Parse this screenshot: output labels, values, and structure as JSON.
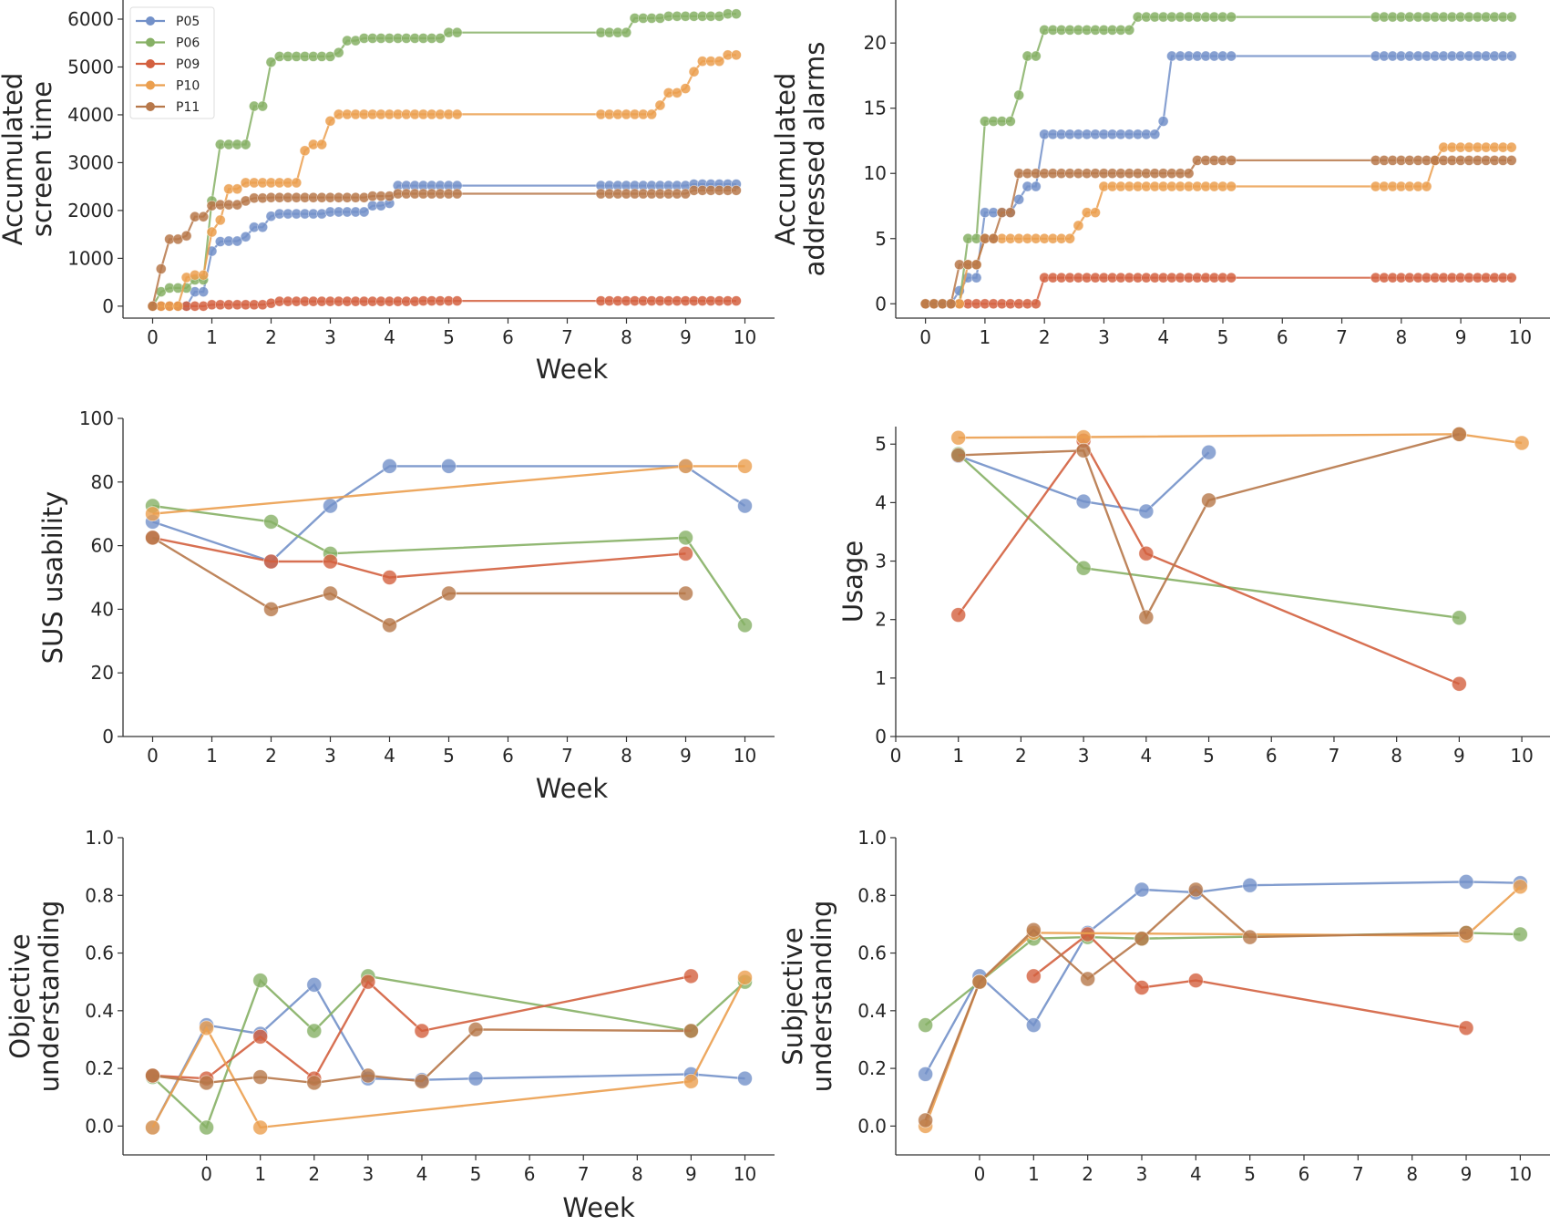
{
  "colors": {
    "P05": "#7391c9",
    "P06": "#86b065",
    "P09": "#d3603f",
    "P10": "#eb9f4f",
    "P11": "#b7784a"
  },
  "legend": {
    "position": "upper-left",
    "panel": "screen_time",
    "entries": [
      "P05",
      "P06",
      "P09",
      "P10",
      "P11"
    ]
  },
  "chart_data": [
    {
      "id": "screen_time",
      "type": "line",
      "title": "",
      "xlabel": "Week",
      "ylabel": [
        "Accumulated",
        "screen time"
      ],
      "xlim": [
        -0.5,
        10.5
      ],
      "ylim": [
        -250,
        6400
      ],
      "xticks": [
        0,
        1,
        2,
        3,
        4,
        5,
        6,
        7,
        8,
        9,
        10
      ],
      "yticks": [
        0,
        1000,
        2000,
        3000,
        4000,
        5000,
        6000
      ],
      "step": 0.1428,
      "gap": [
        5.2,
        7.55
      ],
      "series": [
        {
          "name": "P05",
          "plateaus": [
            [
              0,
              0
            ],
            [
              0.57,
              0
            ],
            [
              0.71,
              300
            ],
            [
              0.86,
              900
            ],
            [
              1.0,
              1150
            ],
            [
              1.14,
              1350
            ],
            [
              1.28,
              1360
            ],
            [
              1.43,
              1400
            ],
            [
              1.57,
              1450
            ],
            [
              1.71,
              1650
            ],
            [
              1.86,
              1720
            ],
            [
              2.0,
              1880
            ],
            [
              2.14,
              1930
            ],
            [
              2.86,
              1970
            ],
            [
              3.71,
              2100
            ],
            [
              3.86,
              2150
            ],
            [
              4.0,
              2280
            ],
            [
              4.14,
              2520
            ],
            [
              9.0,
              2520
            ],
            [
              9.14,
              2550
            ]
          ]
        },
        {
          "name": "P06",
          "plateaus": [
            [
              0,
              0
            ],
            [
              0.14,
              300
            ],
            [
              0.28,
              380
            ],
            [
              0.57,
              380
            ],
            [
              0.71,
              550
            ],
            [
              0.86,
              1500
            ],
            [
              1.0,
              2200
            ],
            [
              1.14,
              3380
            ],
            [
              1.57,
              3380
            ],
            [
              1.71,
              4180
            ],
            [
              1.86,
              4700
            ],
            [
              2.0,
              5100
            ],
            [
              2.14,
              5220
            ],
            [
              3.0,
              5300
            ],
            [
              3.28,
              5550
            ],
            [
              3.57,
              5600
            ],
            [
              4.86,
              5720
            ],
            [
              7.86,
              5720
            ],
            [
              8.0,
              6020
            ],
            [
              8.71,
              6060
            ],
            [
              9.71,
              6110
            ]
          ]
        },
        {
          "name": "P09",
          "plateaus": [
            [
              0,
              0
            ],
            [
              1.0,
              30
            ],
            [
              2.0,
              60
            ],
            [
              2.14,
              100
            ],
            [
              4.5,
              110
            ],
            [
              7.6,
              110
            ]
          ]
        },
        {
          "name": "P10",
          "plateaus": [
            [
              0,
              0
            ],
            [
              0.28,
              0
            ],
            [
              0.43,
              250
            ],
            [
              0.57,
              600
            ],
            [
              0.71,
              650
            ],
            [
              0.86,
              1350
            ],
            [
              1.0,
              1550
            ],
            [
              1.14,
              1800
            ],
            [
              1.28,
              2450
            ],
            [
              1.43,
              2580
            ],
            [
              2.28,
              2580
            ],
            [
              2.43,
              2850
            ],
            [
              2.57,
              3250
            ],
            [
              2.71,
              3380
            ],
            [
              2.86,
              3870
            ],
            [
              3.0,
              3970
            ],
            [
              3.14,
              4010
            ],
            [
              8.28,
              4010
            ],
            [
              8.43,
              4200
            ],
            [
              8.57,
              4380
            ],
            [
              8.71,
              4460
            ],
            [
              8.86,
              4550
            ],
            [
              9.0,
              4690
            ],
            [
              9.14,
              4900
            ],
            [
              9.28,
              5120
            ],
            [
              9.71,
              5250
            ]
          ]
        },
        {
          "name": "P11",
          "plateaus": [
            [
              0,
              0
            ],
            [
              0.14,
              780
            ],
            [
              0.28,
              1400
            ],
            [
              0.43,
              1470
            ],
            [
              0.71,
              1870
            ],
            [
              0.86,
              1930
            ],
            [
              1.0,
              2100
            ],
            [
              1.14,
              2120
            ],
            [
              1.43,
              2200
            ],
            [
              1.71,
              2260
            ],
            [
              2.0,
              2270
            ],
            [
              3.71,
              2300
            ],
            [
              4.14,
              2350
            ],
            [
              9.0,
              2420
            ]
          ]
        }
      ]
    },
    {
      "id": "addressed_alarms",
      "type": "line",
      "title": "",
      "xlabel": "Week",
      "ylabel": [
        "Accumulated",
        "addressed alarms"
      ],
      "xlim": [
        -0.5,
        10.5
      ],
      "ylim": [
        -1.1,
        23.3
      ],
      "xticks": [
        0,
        1,
        2,
        3,
        4,
        5,
        6,
        7,
        8,
        9,
        10
      ],
      "yticks": [
        0,
        5,
        10,
        15,
        20
      ],
      "step": 0.1428,
      "gap": [
        5.2,
        7.55
      ],
      "series": [
        {
          "name": "P05",
          "plateaus": [
            [
              0,
              0
            ],
            [
              0.57,
              1
            ],
            [
              0.71,
              2
            ],
            [
              0.86,
              6
            ],
            [
              1.0,
              7
            ],
            [
              1.57,
              8
            ],
            [
              1.71,
              9
            ],
            [
              1.86,
              10
            ],
            [
              2.0,
              13
            ],
            [
              3.71,
              13
            ],
            [
              3.86,
              14
            ],
            [
              4.0,
              19
            ]
          ]
        },
        {
          "name": "P06",
          "plateaus": [
            [
              0,
              0
            ],
            [
              0.71,
              5
            ],
            [
              0.86,
              7
            ],
            [
              1.0,
              14
            ],
            [
              1.57,
              16
            ],
            [
              1.71,
              19
            ],
            [
              1.86,
              21
            ],
            [
              3.43,
              22
            ]
          ]
        },
        {
          "name": "P09",
          "plateaus": [
            [
              0,
              0
            ],
            [
              1.86,
              2
            ]
          ]
        },
        {
          "name": "P10",
          "plateaus": [
            [
              0,
              0
            ],
            [
              0.57,
              0
            ],
            [
              0.71,
              3
            ],
            [
              0.86,
              3
            ],
            [
              1.0,
              5
            ],
            [
              2.43,
              6
            ],
            [
              2.71,
              7
            ],
            [
              2.86,
              9
            ],
            [
              8.43,
              11
            ],
            [
              8.71,
              12
            ]
          ]
        },
        {
          "name": "P11",
          "plateaus": [
            [
              0,
              0
            ],
            [
              0.57,
              3
            ],
            [
              0.86,
              5
            ],
            [
              1.28,
              7
            ],
            [
              1.57,
              10
            ],
            [
              4.57,
              11
            ]
          ]
        }
      ]
    },
    {
      "id": "sus_usability",
      "type": "line",
      "title": "",
      "xlabel": "Week",
      "ylabel": [
        "SUS usability"
      ],
      "xlim": [
        -0.5,
        10.5
      ],
      "ylim": [
        0,
        100
      ],
      "xticks": [
        0,
        1,
        2,
        3,
        4,
        5,
        6,
        7,
        8,
        9,
        10
      ],
      "yticks": [
        0,
        20,
        40,
        60,
        80,
        100
      ],
      "series": [
        {
          "name": "P05",
          "x": [
            0,
            2,
            3,
            4,
            5,
            9,
            10
          ],
          "y": [
            67.5,
            55,
            72.5,
            85,
            85,
            85,
            72.5
          ]
        },
        {
          "name": "P06",
          "x": [
            0,
            2,
            3,
            9,
            10
          ],
          "y": [
            72.5,
            67.5,
            57.5,
            62.5,
            35
          ]
        },
        {
          "name": "P09",
          "x": [
            0,
            2,
            3,
            4,
            9
          ],
          "y": [
            62.5,
            55,
            55,
            50,
            57.5
          ]
        },
        {
          "name": "P10",
          "x": [
            0,
            9,
            10
          ],
          "y": [
            70,
            85,
            85
          ]
        },
        {
          "name": "P11",
          "x": [
            0,
            2,
            3,
            4,
            5,
            9
          ],
          "y": [
            62.5,
            40,
            45,
            35,
            45,
            45
          ]
        }
      ]
    },
    {
      "id": "usage",
      "type": "line",
      "title": "",
      "xlabel": "Week",
      "ylabel": [
        "Usage"
      ],
      "xlim": [
        0,
        10.45
      ],
      "ylim": [
        0,
        5.3
      ],
      "xticks": [
        0,
        1,
        2,
        3,
        4,
        5,
        6,
        7,
        8,
        9,
        10
      ],
      "yticks": [
        0,
        1,
        2,
        3,
        4,
        5
      ],
      "series": [
        {
          "name": "P05",
          "x": [
            1,
            3,
            4,
            5
          ],
          "y": [
            4.8,
            4.02,
            3.85,
            4.86
          ]
        },
        {
          "name": "P06",
          "x": [
            1,
            3,
            9
          ],
          "y": [
            4.83,
            2.88,
            2.03
          ]
        },
        {
          "name": "P09",
          "x": [
            1,
            3,
            4,
            9
          ],
          "y": [
            2.08,
            5.06,
            3.13,
            0.9
          ]
        },
        {
          "name": "P10",
          "x": [
            1,
            3,
            9,
            10
          ],
          "y": [
            5.11,
            5.12,
            5.17,
            5.02
          ]
        },
        {
          "name": "P11",
          "x": [
            1,
            3,
            4,
            5,
            9
          ],
          "y": [
            4.81,
            4.89,
            2.04,
            4.04,
            5.17
          ]
        }
      ]
    },
    {
      "id": "objective_understanding",
      "type": "line",
      "title": "",
      "xlabel": "Week",
      "ylabel": [
        "Objective",
        "understanding"
      ],
      "xlim": [
        -1.55,
        10.55
      ],
      "ylim": [
        -0.1,
        1.0
      ],
      "xticks": [
        0,
        1,
        2,
        3,
        4,
        5,
        6,
        7,
        8,
        9,
        10
      ],
      "yticks": [
        0.0,
        0.2,
        0.4,
        0.6,
        0.8,
        1.0
      ],
      "series": [
        {
          "name": "P05",
          "x": [
            -1,
            0,
            1,
            2,
            3,
            4,
            5,
            9,
            10
          ],
          "y": [
            -0.005,
            0.35,
            0.32,
            0.49,
            0.165,
            0.16,
            0.165,
            0.18,
            0.165
          ]
        },
        {
          "name": "P06",
          "x": [
            -1,
            0,
            1,
            2,
            3,
            9,
            10
          ],
          "y": [
            0.17,
            -0.005,
            0.505,
            0.33,
            0.52,
            0.33,
            0.5
          ]
        },
        {
          "name": "P09",
          "x": [
            -1,
            0,
            1,
            2,
            3,
            4,
            9
          ],
          "y": [
            0.175,
            0.165,
            0.31,
            0.165,
            0.5,
            0.33,
            0.52
          ]
        },
        {
          "name": "P10",
          "x": [
            -1,
            0,
            1,
            9,
            10
          ],
          "y": [
            -0.005,
            0.34,
            -0.005,
            0.155,
            0.515
          ]
        },
        {
          "name": "P11",
          "x": [
            -1,
            0,
            1,
            2,
            3,
            4,
            5,
            9
          ],
          "y": [
            0.175,
            0.15,
            0.17,
            0.15,
            0.175,
            0.155,
            0.335,
            0.33
          ]
        }
      ]
    },
    {
      "id": "subjective_understanding",
      "type": "line",
      "title": "",
      "xlabel": "Week",
      "ylabel": [
        "Subjective",
        "understanding"
      ],
      "xlim": [
        -1.55,
        10.55
      ],
      "ylim": [
        -0.1,
        1.0
      ],
      "xticks": [
        0,
        1,
        2,
        3,
        4,
        5,
        6,
        7,
        8,
        9,
        10
      ],
      "yticks": [
        0.0,
        0.2,
        0.4,
        0.6,
        0.8,
        1.0
      ],
      "series": [
        {
          "name": "P05",
          "x": [
            -1,
            0,
            1,
            2,
            3,
            4,
            5,
            9,
            10
          ],
          "y": [
            0.18,
            0.52,
            0.35,
            0.67,
            0.82,
            0.81,
            0.835,
            0.847,
            0.843
          ]
        },
        {
          "name": "P06",
          "x": [
            -1,
            0,
            1,
            2,
            3,
            9,
            10
          ],
          "y": [
            0.35,
            0.5,
            0.65,
            0.655,
            0.65,
            0.67,
            0.665
          ]
        },
        {
          "name": "P09",
          "x": [
            1,
            2,
            3,
            4,
            9
          ],
          "y": [
            0.52,
            0.665,
            0.48,
            0.505,
            0.34
          ]
        },
        {
          "name": "P10",
          "x": [
            -1,
            0,
            1,
            9,
            10
          ],
          "y": [
            0.0,
            0.5,
            0.67,
            0.66,
            0.83
          ]
        },
        {
          "name": "P11",
          "x": [
            -1,
            0,
            1,
            2,
            3,
            4,
            5,
            9
          ],
          "y": [
            0.02,
            0.5,
            0.68,
            0.51,
            0.65,
            0.82,
            0.655,
            0.67
          ]
        }
      ]
    }
  ]
}
